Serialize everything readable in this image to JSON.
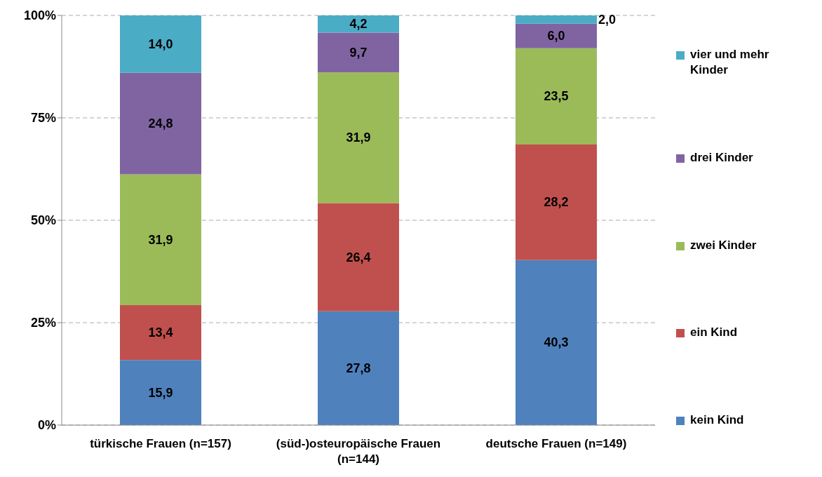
{
  "chart_data": {
    "type": "bar",
    "stacked": true,
    "categories": [
      "türkische Frauen (n=157)",
      "(süd-)osteuropäische Frauen (n=144)",
      "deutsche Frauen (n=149)"
    ],
    "series": [
      {
        "name": "kein Kind",
        "color": "#4f81bd",
        "values": [
          15.9,
          27.8,
          40.3
        ],
        "value_labels": [
          "15,9",
          "27,8",
          "40,3"
        ]
      },
      {
        "name": "ein Kind",
        "color": "#c0504d",
        "values": [
          13.4,
          26.4,
          28.2
        ],
        "value_labels": [
          "13,4",
          "26,4",
          "28,2"
        ]
      },
      {
        "name": "zwei Kinder",
        "color": "#9bbb59",
        "values": [
          31.9,
          31.9,
          23.5
        ],
        "value_labels": [
          "31,9",
          "31,9",
          "23,5"
        ]
      },
      {
        "name": "drei Kinder",
        "color": "#8064a2",
        "values": [
          24.8,
          9.7,
          6.0
        ],
        "value_labels": [
          "24,8",
          "9,7",
          "6,0"
        ]
      },
      {
        "name": "vier und mehr Kinder",
        "color": "#4bacc6",
        "values": [
          14.0,
          4.2,
          2.0
        ],
        "value_labels": [
          "14,0",
          "4,2",
          "2,0"
        ]
      }
    ],
    "ylim": [
      0,
      100
    ],
    "yticks": [
      {
        "value": 0,
        "label": "0%"
      },
      {
        "value": 25,
        "label": "25%"
      },
      {
        "value": 50,
        "label": "50%"
      },
      {
        "value": 75,
        "label": "75%"
      },
      {
        "value": 100,
        "label": "100%"
      }
    ],
    "grid": "y",
    "legend": "right"
  }
}
